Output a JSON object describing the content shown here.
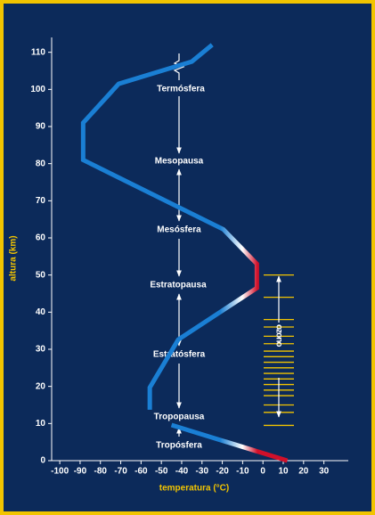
{
  "chart_data": {
    "type": "line",
    "xlabel": "temperatura (°C)",
    "ylabel": "altura (km)",
    "series": [
      {
        "color": "#1a7fd4",
        "x": [
          -25,
          -35,
          -71,
          -88.5,
          -88.5,
          -19.5,
          -3,
          -3,
          -41.7,
          -55.7,
          -55.7
        ],
        "y": [
          112,
          107.5,
          101.5,
          91,
          81,
          62.3,
          53,
          46.5,
          32.6,
          19.7,
          13.7
        ]
      },
      {
        "color": "#1a7fd4",
        "x": [
          -45,
          12
        ],
        "y": [
          9.6,
          0
        ]
      }
    ],
    "warm_color": "#d0102a",
    "xlim": [
      -104,
      42
    ],
    "xticks": [
      -100,
      -90,
      -80,
      -70,
      -60,
      -50,
      -40,
      -30,
      -20,
      -10,
      0,
      10,
      20,
      30
    ],
    "ylim": [
      0,
      114
    ],
    "yticks": [
      0,
      10,
      20,
      30,
      40,
      50,
      60,
      70,
      80,
      90,
      100,
      110
    ],
    "layers": [
      "Termósfera",
      "Mesopausa",
      "Mesósfera",
      "Estratopausa",
      "Estratósfera",
      "Tropopausa",
      "Tropósfera"
    ],
    "ozone_label": "ozono"
  }
}
